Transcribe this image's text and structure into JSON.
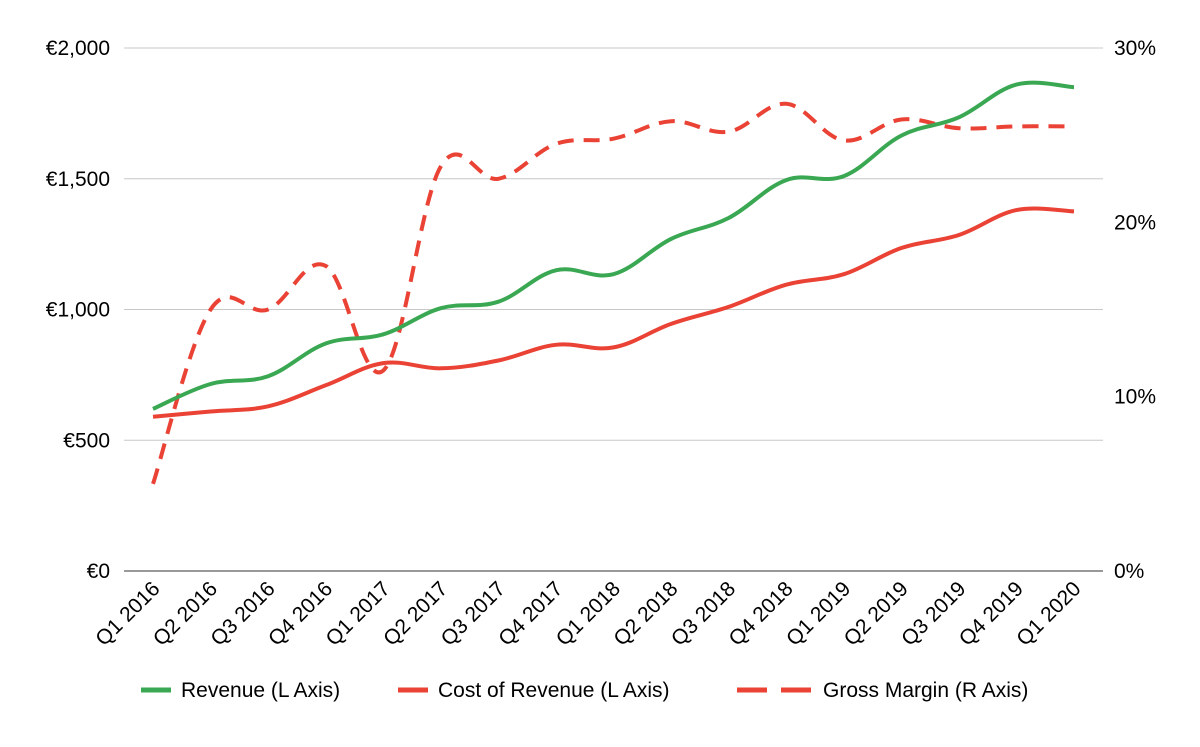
{
  "chart_data": {
    "type": "line",
    "title": "",
    "categories": [
      "Q1 2016",
      "Q2 2016",
      "Q3 2016",
      "Q4 2016",
      "Q1 2017",
      "Q2 2017",
      "Q3 2017",
      "Q4 2017",
      "Q1 2018",
      "Q2 2018",
      "Q3 2018",
      "Q4 2018",
      "Q1 2019",
      "Q2 2019",
      "Q3 2019",
      "Q4 2019",
      "Q1 2020"
    ],
    "left_axis": {
      "ylim": [
        0,
        2000
      ],
      "ticks": [
        0,
        500,
        1000,
        1500,
        2000
      ],
      "tick_labels": [
        "€0",
        "€500",
        "€1,000",
        "€1,500",
        "€2,000"
      ]
    },
    "right_axis": {
      "ylim": [
        0,
        30
      ],
      "ticks": [
        0,
        10,
        20,
        30
      ],
      "tick_labels": [
        "0%",
        "10%",
        "20%",
        "30%"
      ]
    },
    "grid": true,
    "legend_position": "bottom",
    "series": [
      {
        "name": "Revenue (L Axis)",
        "axis": "left",
        "color": "#3aa853",
        "dash": "solid",
        "values": [
          620,
          715,
          745,
          870,
          905,
          1005,
          1030,
          1150,
          1135,
          1270,
          1350,
          1495,
          1510,
          1665,
          1735,
          1860,
          1850
        ]
      },
      {
        "name": "Cost of Revenue (L Axis)",
        "axis": "left",
        "color": "#ea4335",
        "dash": "solid",
        "values": [
          590,
          610,
          630,
          710,
          795,
          775,
          805,
          865,
          855,
          945,
          1010,
          1095,
          1135,
          1235,
          1285,
          1380,
          1375
        ]
      },
      {
        "name": "Gross Margin (R Axis)",
        "axis": "right",
        "color": "#ea4335",
        "dash": "dashed",
        "values": [
          5.0,
          15.0,
          15.0,
          17.5,
          11.5,
          23.2,
          22.5,
          24.5,
          24.8,
          25.8,
          25.2,
          26.8,
          24.7,
          25.9,
          25.4,
          25.5,
          25.5
        ]
      }
    ]
  }
}
